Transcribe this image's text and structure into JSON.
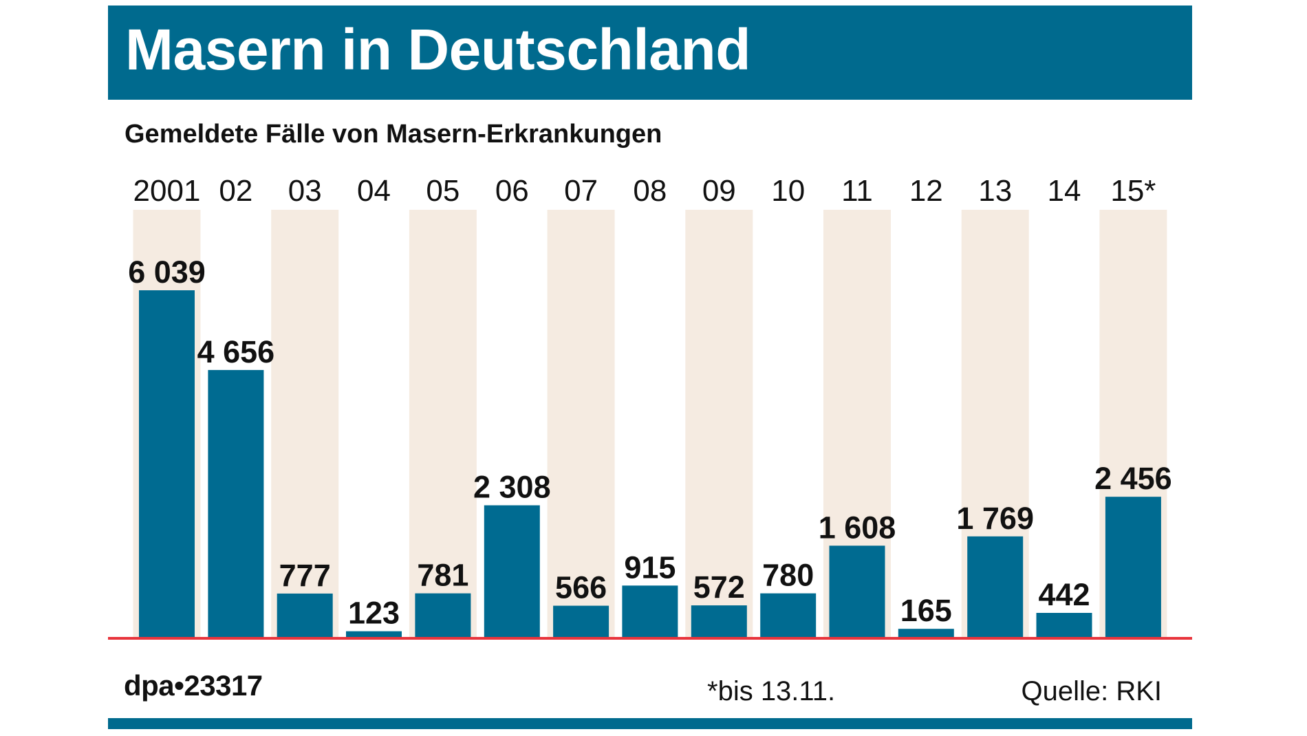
{
  "header": {
    "title": "Masern in Deutschland",
    "subtitle": "Gemeldete Fälle von Masern-Erkrankungen"
  },
  "footer": {
    "agency": "dpa•23317",
    "note": "*bis 13.11.",
    "source": "Quelle: RKI"
  },
  "colors": {
    "brand": "#006a8e",
    "bar": "#006b91",
    "column_shade": "#f5ebe1",
    "baseline": "#e8343c"
  },
  "chart_data": {
    "type": "bar",
    "title": "Masern in Deutschland",
    "subtitle": "Gemeldete Fälle von Masern-Erkrankungen",
    "xlabel": "",
    "ylabel": "",
    "categories": [
      "2001",
      "02",
      "03",
      "04",
      "05",
      "06",
      "07",
      "08",
      "09",
      "10",
      "11",
      "12",
      "13",
      "14",
      "15*"
    ],
    "values": [
      6039,
      4656,
      777,
      123,
      781,
      2308,
      566,
      915,
      572,
      780,
      1608,
      165,
      1769,
      442,
      2456
    ],
    "value_labels": [
      "6 039",
      "4 656",
      "777",
      "123",
      "781",
      "2 308",
      "566",
      "915",
      "572",
      "780",
      "1 608",
      "165",
      "1 769",
      "442",
      "2 456"
    ],
    "ylim": [
      0,
      6039
    ],
    "grid": false,
    "legend": "none",
    "annotations": [
      "*bis 13.11."
    ]
  }
}
